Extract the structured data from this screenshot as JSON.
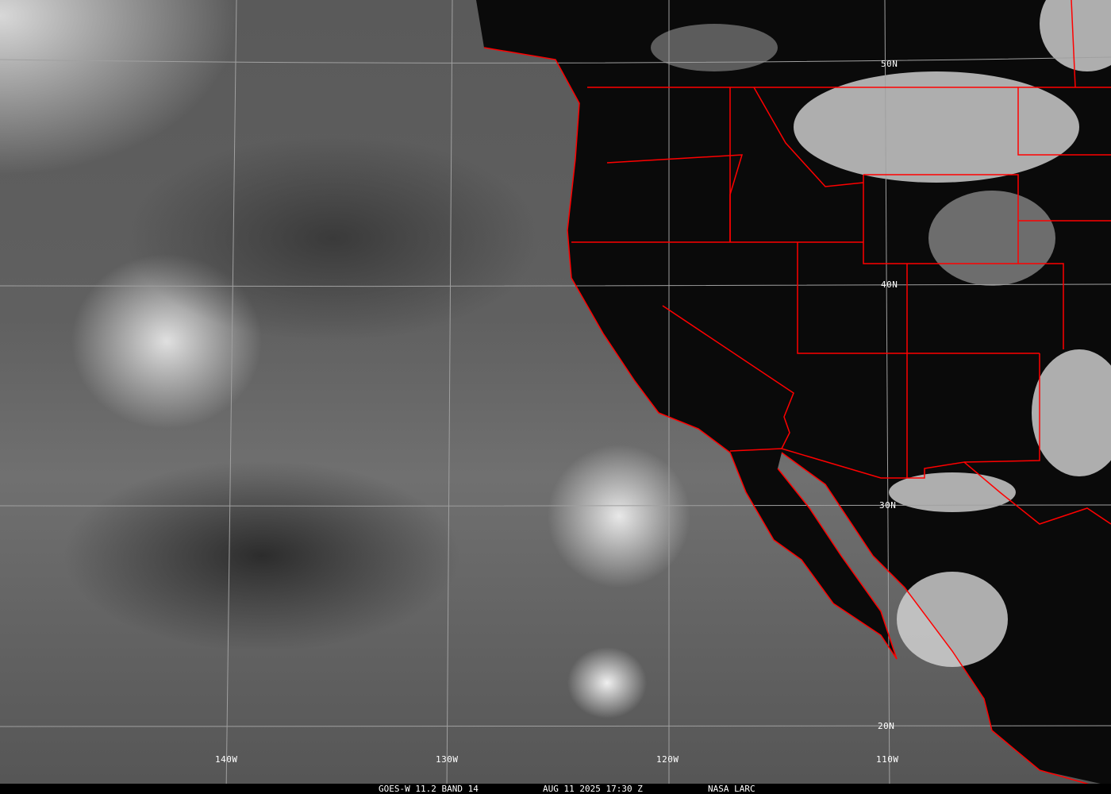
{
  "caption": {
    "satellite": "GOES-W 11.2 BAND 14",
    "datetime": "AUG 11 2025 17:30 Z",
    "source": "NASA LARC"
  },
  "grid": {
    "latitudes": [
      "50N",
      "40N",
      "30N",
      "20N"
    ],
    "longitudes": [
      "140W",
      "130W",
      "120W",
      "110W"
    ]
  },
  "colors": {
    "borders": "#ff0000",
    "grid": "#a0a0a0",
    "land": "#000000",
    "ocean": "#666666"
  }
}
